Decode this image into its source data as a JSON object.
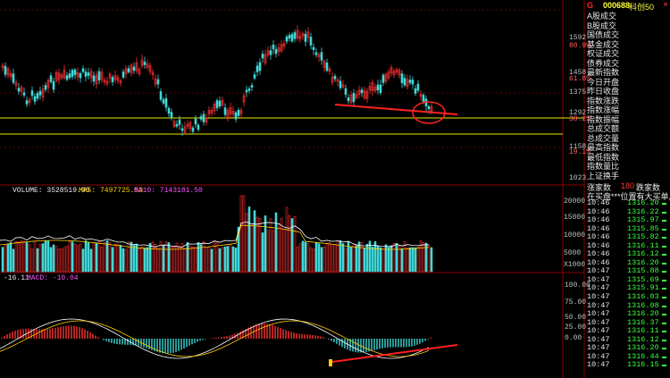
{
  "header": {
    "flag": "G",
    "code": "000688",
    "name": "科创50",
    "close_glyph": "×"
  },
  "menu": [
    "A股成交",
    "B股成交",
    "国债成交",
    "基金成交",
    "权证成交",
    "债券成交",
    "最新指数",
    "今日开盘",
    "昨日收盘",
    "指数涨跌",
    "指数涨幅",
    "指数振幅",
    "总成交额",
    "总成交量",
    "最高指数",
    "最低指数",
    "指数量比",
    "上证换手"
  ],
  "advance_decline": {
    "up_label": "涨家数",
    "up_value": "180",
    "down_label": "跌家数"
  },
  "pending_text": "在买盘***位置有大买单,或",
  "ticks": [
    {
      "t": "10:46",
      "p": "1316.20"
    },
    {
      "t": "10:46",
      "p": "1316.22"
    },
    {
      "t": "10:46",
      "p": "1315.97"
    },
    {
      "t": "10:46",
      "p": "1315.85"
    },
    {
      "t": "10:46",
      "p": "1315.82"
    },
    {
      "t": "10:46",
      "p": "1316.11"
    },
    {
      "t": "10:46",
      "p": "1316.12"
    },
    {
      "t": "10:46",
      "p": "1316.20"
    },
    {
      "t": "10:47",
      "p": "1315.88"
    },
    {
      "t": "10:47",
      "p": "1315.69"
    },
    {
      "t": "10:47",
      "p": "1315.91"
    },
    {
      "t": "10:47",
      "p": "1316.03"
    },
    {
      "t": "10:47",
      "p": "1316.08"
    },
    {
      "t": "10:47",
      "p": "1316.20"
    },
    {
      "t": "10:47",
      "p": "1316.37"
    },
    {
      "t": "10:47",
      "p": "1316.11"
    },
    {
      "t": "10:47",
      "p": "1316.12"
    },
    {
      "t": "10:47",
      "p": "1316.20"
    },
    {
      "t": "10:47",
      "p": "1316.44"
    },
    {
      "t": "10:47",
      "p": "1316.15"
    }
  ],
  "price_axis": [
    "1592",
    "80.9%",
    "1458",
    "61.8%",
    "1375",
    "1292",
    "38.2%",
    "1158",
    "19.1%",
    "1023"
  ],
  "volume_header": {
    "vol": "VOLUME: 3528519.00",
    "ma5": "MA5: 7497725.50",
    "ma10": "MA10: 7143181.50"
  },
  "volume_axis": [
    "20000",
    "15000",
    "10000",
    "5000",
    "X1000"
  ],
  "macd_header": {
    "diff": "-16.11",
    "macd": "MACD: -10.04"
  },
  "macd_axis": [
    "100.00",
    "75.00",
    "50.00",
    "25.00",
    "0.00"
  ],
  "colors": {
    "up": "#ff3030",
    "down": "#40d8d8",
    "bg": "#000000",
    "grid": "#8b0000",
    "ma5": "#ffffff",
    "ma10": "#ffd000",
    "marker_line": "#e8e800",
    "annotation": "#ff2020"
  }
}
